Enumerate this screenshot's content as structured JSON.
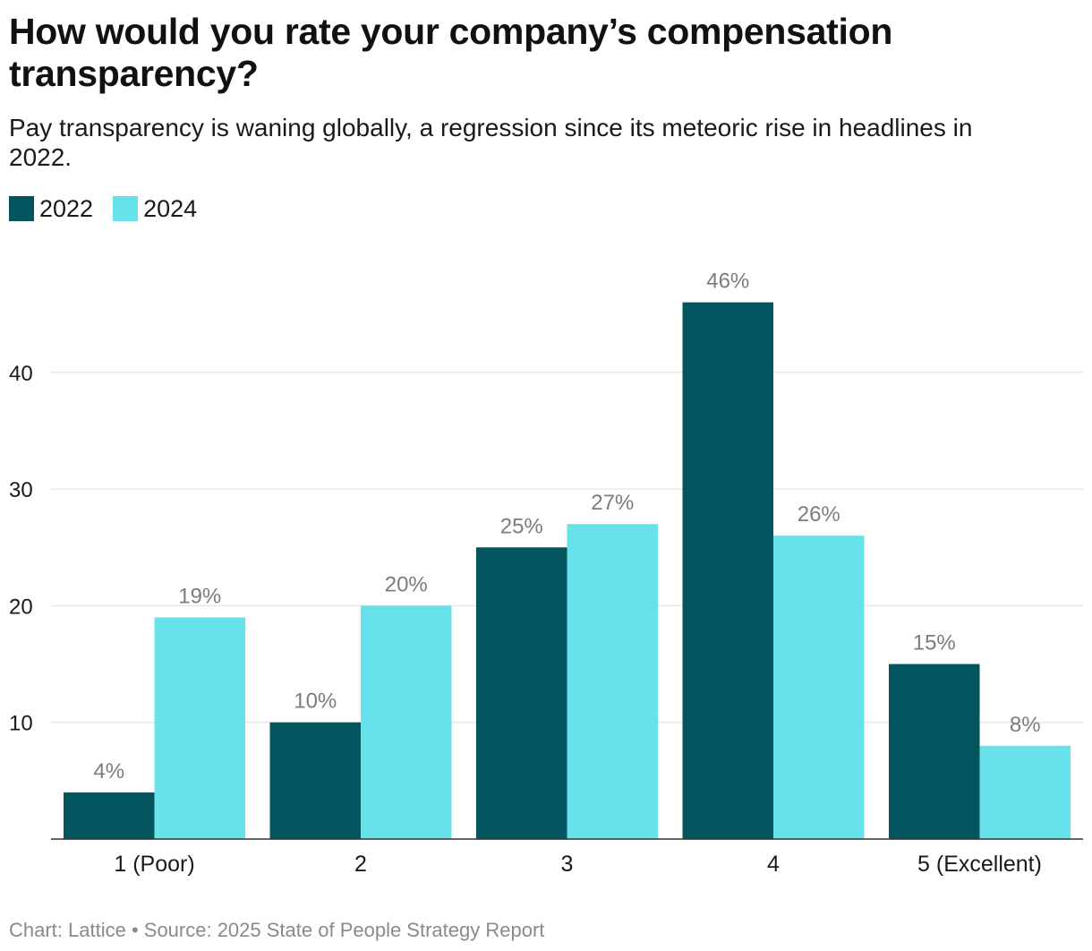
{
  "chart_data": {
    "type": "bar",
    "title": "How would you rate your company’s compensation transparency?",
    "subtitle": "Pay transparency is waning globally, a regression since its meteoric rise in headlines in 2022.",
    "categories": [
      "1 (Poor)",
      "2",
      "3",
      "4",
      "5 (Excellent)"
    ],
    "series": [
      {
        "name": "2022",
        "color": "#02555e",
        "values": [
          4,
          10,
          25,
          46,
          15
        ]
      },
      {
        "name": "2024",
        "color": "#68e2ea",
        "values": [
          19,
          20,
          27,
          26,
          8
        ]
      }
    ],
    "data_label_suffix": "%",
    "yticks": [
      10,
      20,
      30,
      40
    ],
    "ylim": [
      0,
      50
    ],
    "xlabel": "",
    "ylabel": "",
    "grid": true,
    "legend_position": "top-left"
  },
  "footer": {
    "text": "Chart: Lattice • Source: 2025 State of People Strategy Report"
  }
}
